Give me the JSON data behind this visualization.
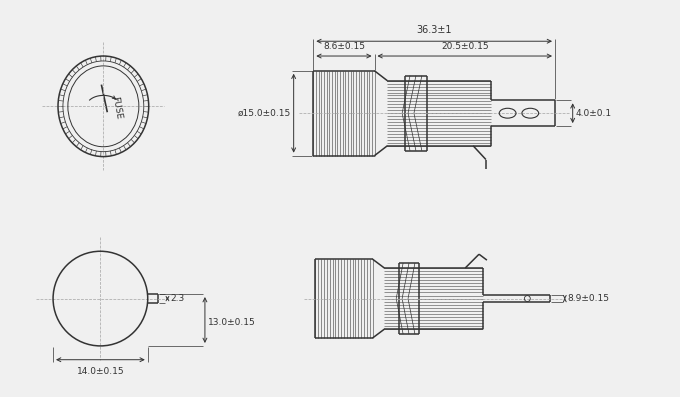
{
  "bg_color": "#f0f0f0",
  "line_color": "#333333",
  "dim_color": "#333333",
  "dash_color": "#aaaaaa",
  "dimensions": {
    "total_length": "36.3±1",
    "knurled_length": "8.6±0.15",
    "thread_length": "20.5±0.15",
    "diameter": "ø15.0±0.15",
    "terminal_thickness": "4.0±0.1",
    "bottom_dia": "14.0±0.15",
    "pin_dim": "2.3",
    "pin_len": "13.0±0.15",
    "back_len": "8.9±0.15"
  }
}
